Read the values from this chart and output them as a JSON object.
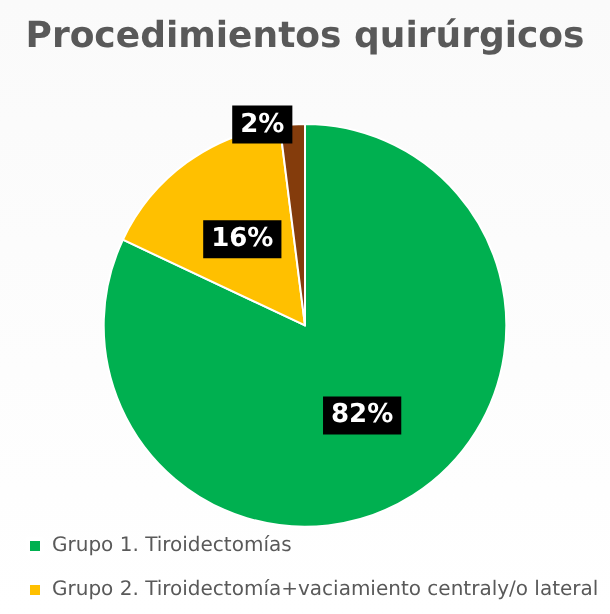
{
  "chart_data": {
    "type": "pie",
    "title": "Procedimientos quirúrgicos",
    "categories": [
      "Grupo 1. Tiroidectomías",
      "Grupo 2. Tiroidectomía+vaciamiento centraly/o lateral",
      null
    ],
    "values": [
      82,
      16,
      2
    ],
    "colors": [
      "#00b050",
      "#ffc000",
      "#843c0c"
    ],
    "value_labels": [
      "82%",
      "16%",
      "2%"
    ],
    "legend": "bottom"
  }
}
